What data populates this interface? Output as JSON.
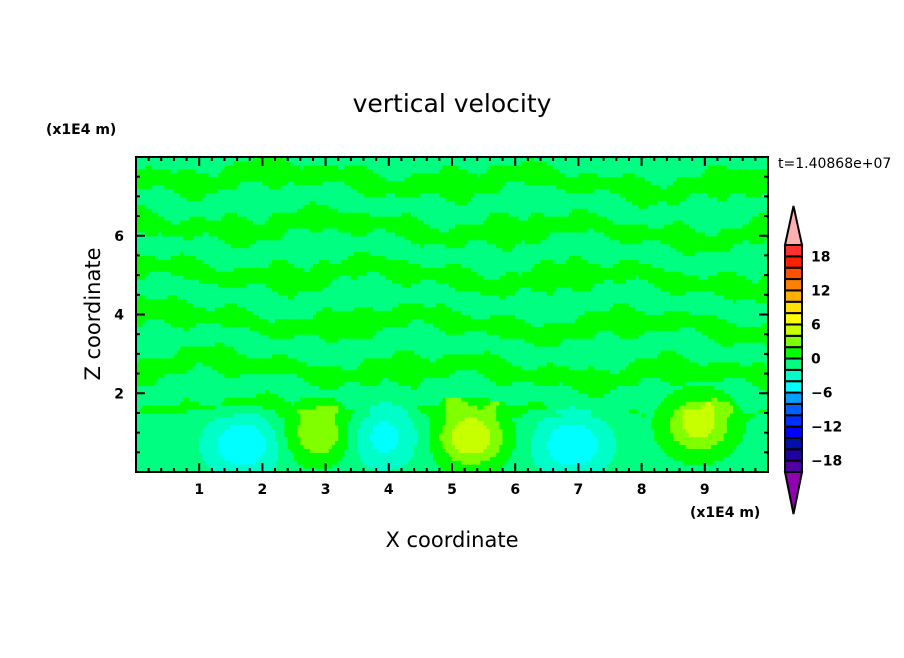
{
  "chart_data": {
    "type": "heatmap",
    "subtype": "filled-contour",
    "title": "vertical velocity",
    "xlabel": "X coordinate",
    "ylabel": "Z coordinate",
    "x_unit": "(x1E4 m)",
    "y_unit": "(x1E4 m)",
    "time_label": "t=1.40868e+07",
    "xlim": [
      0,
      10
    ],
    "ylim": [
      0,
      8
    ],
    "xticks": [
      1,
      2,
      3,
      4,
      5,
      6,
      7,
      8,
      9
    ],
    "yticks": [
      2,
      4,
      6
    ],
    "colorbar": {
      "levels": [
        -20,
        -18,
        -16,
        -14,
        -12,
        -10,
        -8,
        -6,
        -4,
        -2,
        0,
        2,
        4,
        6,
        8,
        10,
        12,
        14,
        16,
        18,
        20
      ],
      "tick_labels": [
        "18",
        "12",
        "6",
        "0",
        "-6",
        "-12",
        "-18"
      ],
      "tick_values": [
        18,
        12,
        6,
        0,
        -6,
        -12,
        -18
      ],
      "colors": [
        "#5000a0",
        "#2000a0",
        "#0010a8",
        "#0000ff",
        "#0030ff",
        "#0060ff",
        "#00a0ff",
        "#00ffff",
        "#00ffc8",
        "#00ff80",
        "#00ff00",
        "#80ff00",
        "#c8ff00",
        "#ffff00",
        "#ffe000",
        "#ffb000",
        "#ff8000",
        "#ff5000",
        "#ff2000",
        "#ff3030"
      ],
      "under_color": "#9000b0",
      "over_color": "#ffb0b0"
    },
    "features": [
      {
        "kind": "updraft",
        "x": 2.9,
        "z": 1.0,
        "peak": 5
      },
      {
        "kind": "updraft",
        "x": 5.3,
        "z": 0.9,
        "peak": 7
      },
      {
        "kind": "updraft",
        "x": 8.9,
        "z": 1.2,
        "peak": 6
      },
      {
        "kind": "downdraft",
        "x": 1.7,
        "z": 0.7,
        "peak": -5
      },
      {
        "kind": "downdraft",
        "x": 3.9,
        "z": 0.9,
        "peak": -4
      },
      {
        "kind": "downdraft",
        "x": 6.9,
        "z": 0.7,
        "peak": -5
      }
    ]
  }
}
